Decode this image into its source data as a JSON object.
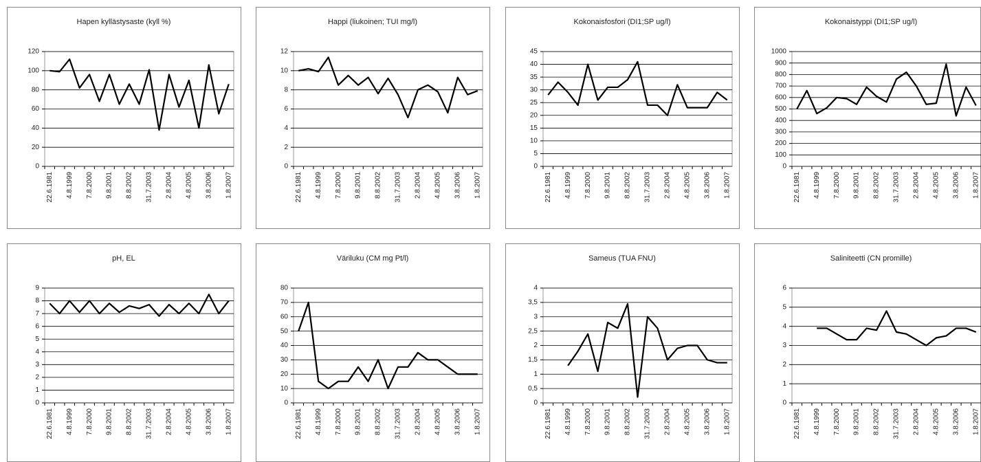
{
  "chart_data": [
    {
      "type": "line",
      "title": "Hapen kyllästysaste (kyll %)",
      "categories": [
        "22.6.1981",
        null,
        "4.8.1999",
        null,
        "7.8.2000",
        null,
        "9.8.2001",
        null,
        "8.8.2002",
        null,
        "31.7.2003",
        null,
        "2.8.2004",
        null,
        "4.8.2005",
        null,
        "3.8.2006",
        null,
        "1.8.2007"
      ],
      "values": [
        100,
        99,
        112,
        82,
        96,
        68,
        96,
        65,
        86,
        65,
        101,
        38,
        96,
        62,
        90,
        40,
        106,
        55,
        86
      ],
      "color": "#000000",
      "ylim": [
        0,
        120
      ],
      "yticks": [
        0,
        20,
        40,
        60,
        80,
        100,
        120
      ],
      "grid": true
    },
    {
      "type": "line",
      "title": "Happi (liukoinen; TUI mg/l)",
      "categories": [
        "22.6.1981",
        null,
        "4.8.1999",
        null,
        "7.8.2000",
        null,
        "9.8.2001",
        null,
        "8.8.2002",
        null,
        "31.7.2003",
        null,
        "2.8.2004",
        null,
        "4.8.2005",
        null,
        "3.8.2006",
        null,
        "1.8.2007"
      ],
      "values": [
        10,
        10.2,
        9.9,
        11.4,
        8.5,
        9.5,
        8.5,
        9.3,
        7.6,
        9.2,
        7.5,
        5.1,
        8.0,
        8.5,
        7.8,
        5.6,
        9.3,
        7.5,
        7.9
      ],
      "color": "#000000",
      "ylim": [
        0,
        12
      ],
      "yticks": [
        0,
        2,
        4,
        6,
        8,
        10,
        12
      ],
      "grid": true
    },
    {
      "type": "line",
      "title": "Kokonaisfosfori (DI1;SP ug/l)",
      "categories": [
        "22.6.1981",
        null,
        "4.8.1999",
        null,
        "7.8.2000",
        null,
        "9.8.2001",
        null,
        "8.8.2002",
        null,
        "31.7.2003",
        null,
        "2.8.2004",
        null,
        "4.8.2005",
        null,
        "3.8.2006",
        null,
        "1.8.2007"
      ],
      "values": [
        28,
        33,
        29,
        24,
        40,
        26,
        31,
        31,
        34,
        41,
        24,
        24,
        20,
        32,
        23,
        23,
        23,
        29,
        26
      ],
      "color": "#000000",
      "ylim": [
        0,
        45
      ],
      "yticks": [
        0,
        5,
        10,
        15,
        20,
        25,
        30,
        35,
        40,
        45
      ],
      "grid": true
    },
    {
      "type": "line",
      "title": "Kokonaistyppi (DI1;SP ug/l)",
      "categories": [
        "22.6.1981",
        null,
        "4.8.1999",
        null,
        "7.8.2000",
        null,
        "9.8.2001",
        null,
        "8.8.2002",
        null,
        "31.7.2003",
        null,
        "2.8.2004",
        null,
        "4.8.2005",
        null,
        "3.8.2006",
        null,
        "1.8.2007"
      ],
      "values": [
        500,
        660,
        460,
        510,
        600,
        590,
        540,
        690,
        610,
        560,
        760,
        820,
        700,
        540,
        550,
        890,
        440,
        690,
        530
      ],
      "color": "#000000",
      "ylim": [
        0,
        1000
      ],
      "yticks": [
        0,
        100,
        200,
        300,
        400,
        500,
        600,
        700,
        800,
        900,
        1000
      ],
      "grid": true
    },
    {
      "type": "line",
      "title": "pH, EL",
      "categories": [
        "22.6.1981",
        null,
        "4.8.1999",
        null,
        "7.8.2000",
        null,
        "9.8.2001",
        null,
        "8.8.2002",
        null,
        "31.7.2003",
        null,
        "2.8.2004",
        null,
        "4.8.2005",
        null,
        "3.8.2006",
        null,
        "1.8.2007"
      ],
      "values": [
        7.8,
        7.0,
        8.0,
        7.1,
        8.0,
        7.0,
        7.8,
        7.1,
        7.6,
        7.4,
        7.7,
        6.8,
        7.7,
        7.0,
        7.8,
        7.0,
        8.5,
        7.0,
        8.0
      ],
      "color": "#000000",
      "ylim": [
        0,
        9
      ],
      "yticks": [
        0,
        1,
        2,
        3,
        4,
        5,
        6,
        7,
        8,
        9
      ],
      "grid": true
    },
    {
      "type": "line",
      "title": "Väriluku (CM mg Pt/l)",
      "categories": [
        "22.6.1981",
        null,
        "4.8.1999",
        null,
        "7.8.2000",
        null,
        "9.8.2001",
        null,
        "8.8.2002",
        null,
        "31.7.2003",
        null,
        "2.8.2004",
        null,
        "4.8.2005",
        null,
        "3.8.2006",
        null,
        "1.8.2007"
      ],
      "values": [
        50,
        70,
        15,
        10,
        15,
        15,
        25,
        15,
        30,
        10,
        25,
        25,
        35,
        30,
        30,
        25,
        20,
        20,
        20
      ],
      "color": "#000000",
      "ylim": [
        0,
        80
      ],
      "yticks": [
        0,
        10,
        20,
        30,
        40,
        50,
        60,
        70,
        80
      ],
      "grid": true
    },
    {
      "type": "line",
      "title": "Sameus (TUA FNU)",
      "categories": [
        "22.6.1981",
        null,
        "4.8.1999",
        null,
        "7.8.2000",
        null,
        "9.8.2001",
        null,
        "8.8.2002",
        null,
        "31.7.2003",
        null,
        "2.8.2004",
        null,
        "4.8.2005",
        null,
        "3.8.2006",
        null,
        "1.8.2007"
      ],
      "values": [
        null,
        null,
        1.3,
        1.8,
        2.4,
        1.1,
        2.8,
        2.6,
        3.45,
        0.2,
        3.0,
        2.6,
        1.5,
        1.9,
        2.0,
        2.0,
        1.5,
        1.4,
        1.4
      ],
      "color": "#000000",
      "ylim": [
        0,
        4
      ],
      "yticks": [
        0,
        {
          "value": 0.5,
          "label": "0,5"
        },
        1,
        {
          "value": 1.5,
          "label": "1,5"
        },
        2,
        {
          "value": 2.5,
          "label": "2,5"
        },
        3,
        {
          "value": 3.5,
          "label": "3,5"
        },
        4
      ],
      "grid": true
    },
    {
      "type": "line",
      "title": "Saliniteetti (CN promille)",
      "categories": [
        "22.6.1981",
        null,
        "4.8.1999",
        null,
        "7.8.2000",
        null,
        "9.8.2001",
        null,
        "8.8.2002",
        null,
        "31.7.2003",
        null,
        "2.8.2004",
        null,
        "4.8.2005",
        null,
        "3.8.2006",
        null,
        "1.8.2007"
      ],
      "values": [
        null,
        null,
        3.9,
        3.9,
        3.6,
        3.3,
        3.3,
        3.9,
        3.8,
        4.8,
        3.7,
        3.6,
        3.3,
        3.0,
        3.4,
        3.5,
        3.9,
        3.9,
        3.7
      ],
      "color": "#000000",
      "ylim": [
        0,
        6
      ],
      "yticks": [
        0,
        1,
        2,
        3,
        4,
        5,
        6
      ],
      "grid": true
    }
  ]
}
